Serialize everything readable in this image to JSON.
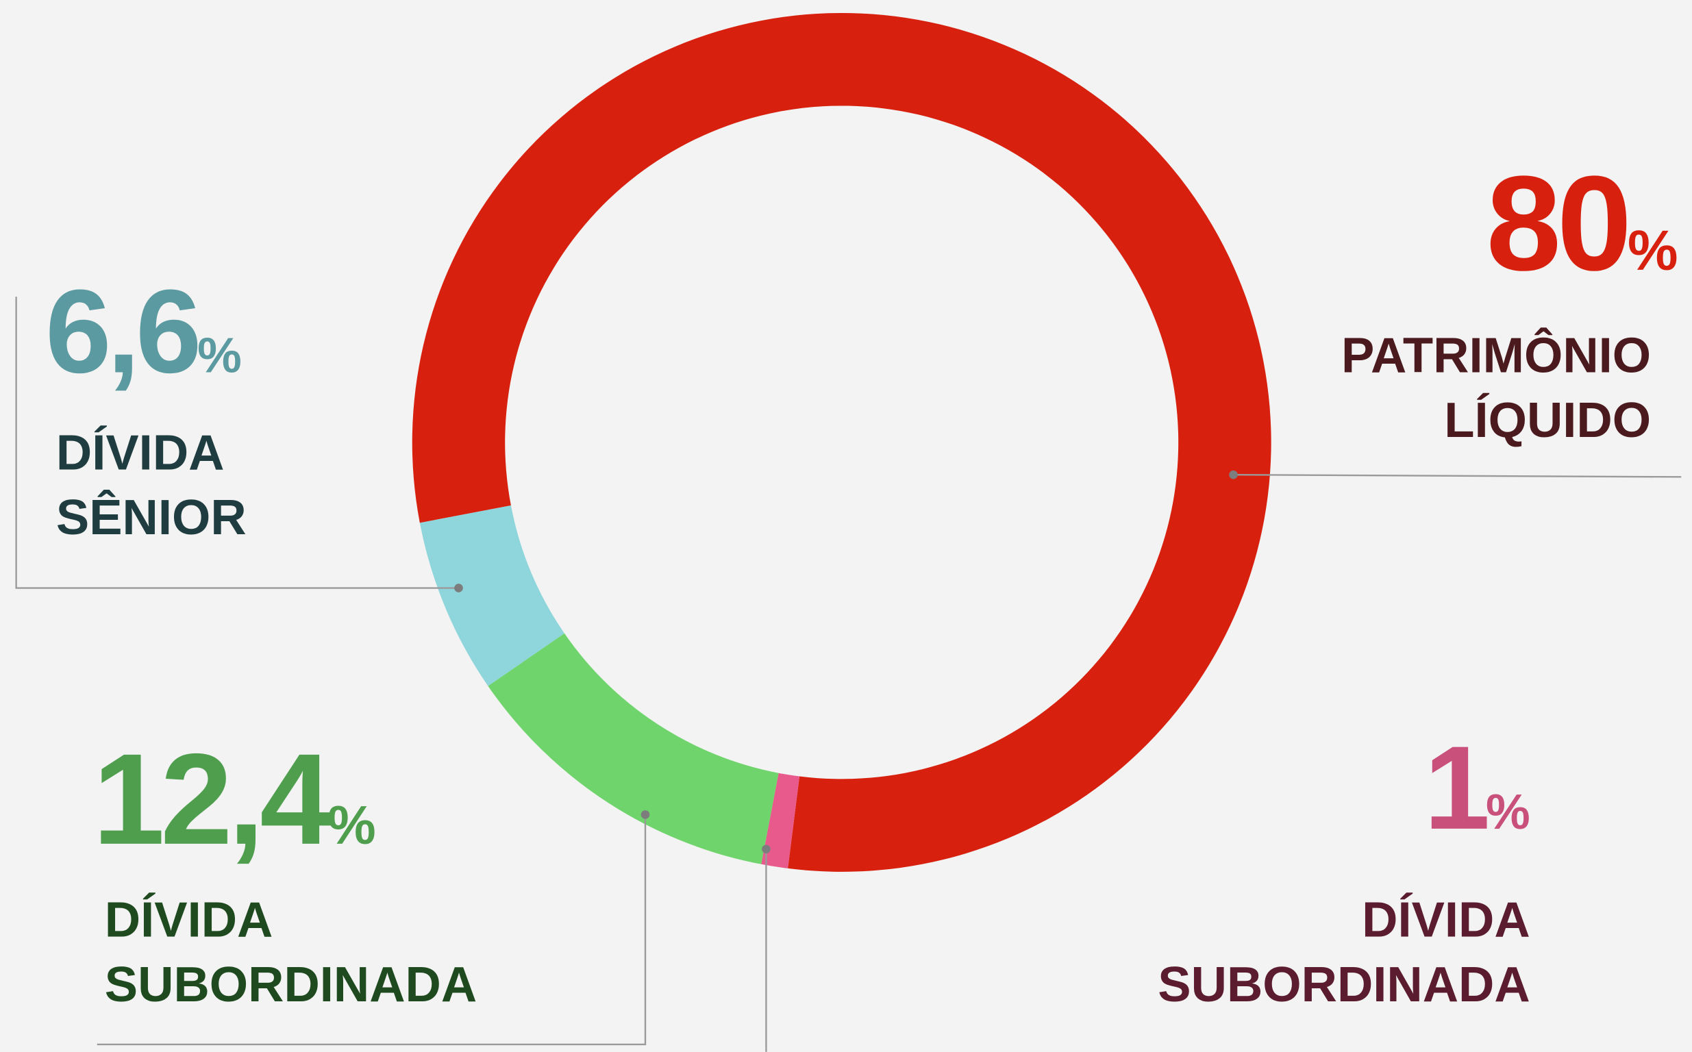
{
  "chart_data": {
    "type": "donut",
    "series": [
      {
        "name": "PATRIMÔNIO LÍQUIDO",
        "color": "#d8200f",
        "label_color": "#d8200f",
        "name_color": "#4a1a1e",
        "values": [
          80
        ],
        "value_labels": [
          "80%"
        ]
      },
      {
        "name": "DÍVIDA SUBORDINADA",
        "color": "#e85a8c",
        "label_color": "#c8507a",
        "name_color": "#5a1c2e",
        "values": [
          1
        ],
        "value_labels": [
          "1%"
        ]
      },
      {
        "name": "DÍVIDA SUBORDINADA",
        "color": "#6fd46c",
        "label_color": "#4e9e4e",
        "name_color": "#1f4a1f",
        "values": [
          12.4
        ],
        "value_labels": [
          "12,4%"
        ]
      },
      {
        "name": "DÍVIDA SÊNIOR",
        "color": "#8fd6dc",
        "label_color": "#5b9aa0",
        "name_color": "#1f3d40",
        "values": [
          6.6
        ],
        "value_labels": [
          "6,6%"
        ]
      }
    ]
  }
}
